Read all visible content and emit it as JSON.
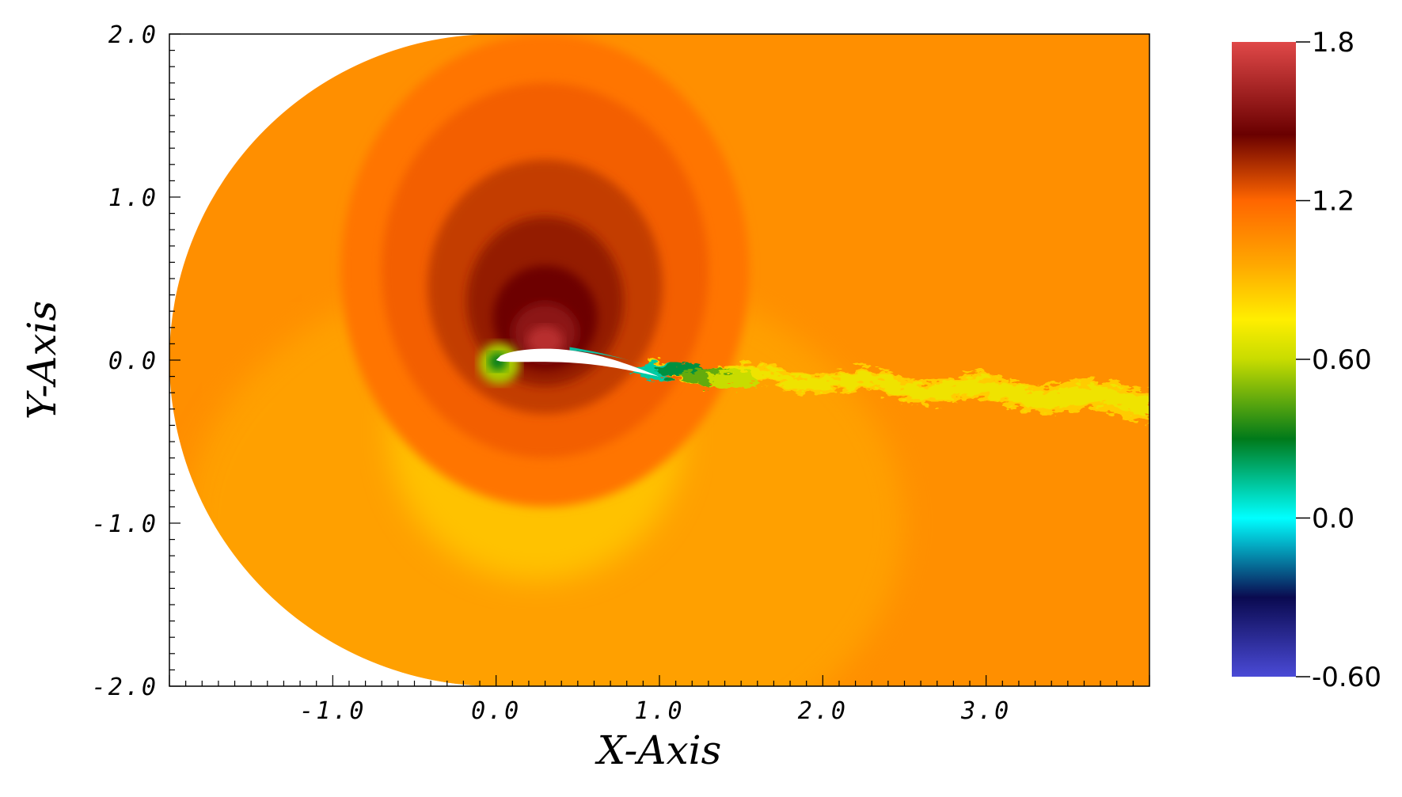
{
  "chart_data": {
    "type": "heatmap",
    "title": "",
    "xlabel": "X-Axis",
    "ylabel": "Y-Axis",
    "xlim": [
      -2.0,
      4.0
    ],
    "ylim": [
      -2.0,
      2.0
    ],
    "x_ticks": [
      {
        "value": -1.0,
        "label": "-1.0"
      },
      {
        "value": 0.0,
        "label": "0.0"
      },
      {
        "value": 1.0,
        "label": "1.0"
      },
      {
        "value": 2.0,
        "label": "2.0"
      },
      {
        "value": 3.0,
        "label": "3.0"
      }
    ],
    "y_ticks": [
      {
        "value": 2.0,
        "label": "2.0"
      },
      {
        "value": 1.0,
        "label": "1.0"
      },
      {
        "value": 0.0,
        "label": "0.0"
      },
      {
        "value": -1.0,
        "label": "-1.0"
      },
      {
        "value": -2.0,
        "label": "-2.0"
      }
    ],
    "colorbar": {
      "range": [
        -0.6,
        1.8
      ],
      "ticks": [
        {
          "value": 1.8,
          "label": "1.8"
        },
        {
          "value": 1.2,
          "label": "1.2"
        },
        {
          "value": 0.6,
          "label": "0.60"
        },
        {
          "value": 0.0,
          "label": "0.0"
        },
        {
          "value": -0.6,
          "label": "-0.60"
        }
      ],
      "colormap": [
        {
          "value": -0.6,
          "color": "#4a4ad6"
        },
        {
          "value": -0.3,
          "color": "#0a0a50"
        },
        {
          "value": 0.0,
          "color": "#00ffff"
        },
        {
          "value": 0.3,
          "color": "#007a1a"
        },
        {
          "value": 0.6,
          "color": "#c8dc00"
        },
        {
          "value": 0.75,
          "color": "#ffee00"
        },
        {
          "value": 0.95,
          "color": "#ffaa00"
        },
        {
          "value": 1.2,
          "color": "#ff6600"
        },
        {
          "value": 1.45,
          "color": "#6a0000"
        },
        {
          "value": 1.8,
          "color": "#e04848"
        }
      ]
    },
    "field": {
      "domain_shape": "C-mesh: semicircle of radius 2 centred at (0,0) on the left, rectangle to x=4",
      "freestream_value": 1.05,
      "features": [
        "airfoil at x 0 to 1, near y = 0, shown white",
        "stagnation point near leading edge (x=0, y=0), value near 0.3",
        "high-value suction region above airfoil, peak about 1.7",
        "low-value region below airfoil, about 0.85",
        "turbulent wake from x=1 to x=4, values 0.6 to 0.9, drifting to y=-0.3"
      ]
    },
    "grid": false,
    "legend": "colorbar at right"
  }
}
